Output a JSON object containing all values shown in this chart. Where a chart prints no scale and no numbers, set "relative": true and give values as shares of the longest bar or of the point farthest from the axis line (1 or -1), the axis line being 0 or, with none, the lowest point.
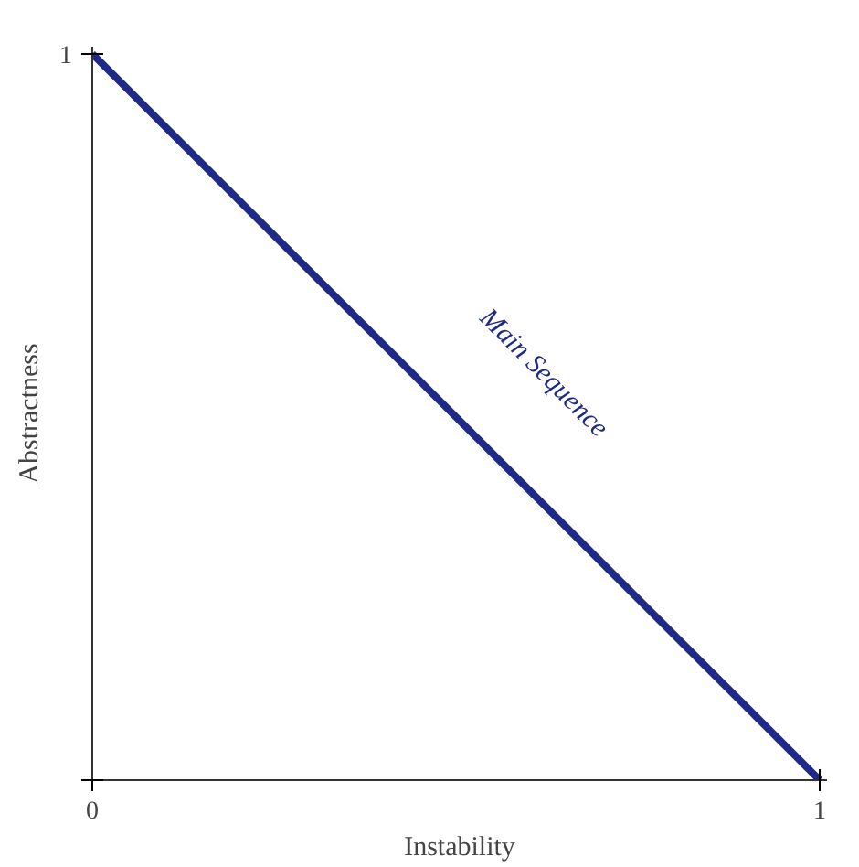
{
  "chart_data": {
    "type": "line",
    "xlabel": "Instability",
    "ylabel": "Abstractness",
    "x": [
      0,
      1
    ],
    "series": [
      {
        "color": "#1f2a86",
        "values": [
          1,
          0
        ]
      }
    ],
    "xlim": [
      0,
      1.01
    ],
    "relative": true,
    "xticks": [
      0,
      1
    ],
    "annotations": [
      "Main Sequence",
      "1"
    ],
    "grid": false,
    "marker": "none",
    "line_style": "solid"
  }
}
